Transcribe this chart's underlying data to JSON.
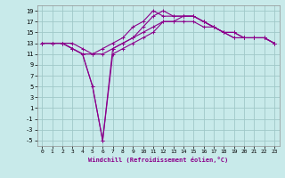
{
  "bg_color": "#c8eaea",
  "grid_color": "#a0c8c8",
  "line_color": "#8b008b",
  "xlabel": "Windchill (Refroidissement éolien,°C)",
  "xlim": [
    -0.5,
    23.5
  ],
  "ylim": [
    -6,
    20
  ],
  "yticks": [
    -5,
    -3,
    -1,
    1,
    3,
    5,
    7,
    9,
    11,
    13,
    15,
    17,
    19
  ],
  "xticks": [
    0,
    1,
    2,
    3,
    4,
    5,
    6,
    7,
    8,
    9,
    10,
    11,
    12,
    13,
    14,
    15,
    16,
    17,
    18,
    19,
    20,
    21,
    22,
    23
  ],
  "curves": [
    {
      "x": [
        0,
        1,
        2,
        3,
        4,
        5,
        6,
        7,
        8,
        9,
        10,
        11,
        12,
        13,
        14,
        15,
        16,
        17,
        18,
        19,
        20,
        21,
        22,
        23
      ],
      "y": [
        13,
        13,
        13,
        12,
        11,
        11,
        11,
        12,
        13,
        14,
        15,
        16,
        17,
        17,
        17,
        17,
        16,
        16,
        15,
        14,
        14,
        14,
        14,
        13
      ],
      "marker": "+"
    },
    {
      "x": [
        0,
        1,
        2,
        3,
        4,
        5,
        6,
        7,
        8,
        9,
        10,
        11,
        12,
        13,
        14,
        15,
        16,
        17,
        18,
        19,
        20,
        21,
        22,
        23
      ],
      "y": [
        13,
        13,
        13,
        12,
        11,
        5,
        -5,
        11,
        12,
        13,
        14,
        15,
        17,
        17,
        18,
        18,
        17,
        16,
        15,
        14,
        14,
        14,
        14,
        13
      ],
      "marker": "+"
    },
    {
      "x": [
        0,
        1,
        2,
        3,
        4,
        5,
        6,
        7,
        8,
        9,
        10,
        11,
        12,
        13,
        14,
        15,
        16,
        17,
        18,
        19,
        20,
        21,
        22,
        23
      ],
      "y": [
        13,
        13,
        13,
        13,
        12,
        11,
        12,
        13,
        14,
        16,
        17,
        19,
        18,
        18,
        18,
        18,
        17,
        16,
        15,
        15,
        14,
        14,
        14,
        13
      ],
      "marker": "+"
    },
    {
      "x": [
        0,
        1,
        2,
        3,
        4,
        5,
        6,
        7,
        8,
        9,
        10,
        11,
        12,
        13,
        14,
        15,
        16,
        17,
        18,
        19,
        20,
        21,
        22,
        23
      ],
      "y": [
        13,
        13,
        13,
        12,
        11,
        5,
        -5,
        12,
        13,
        14,
        16,
        18,
        19,
        18,
        18,
        18,
        17,
        16,
        15,
        15,
        14,
        14,
        14,
        13
      ],
      "marker": "+"
    }
  ]
}
